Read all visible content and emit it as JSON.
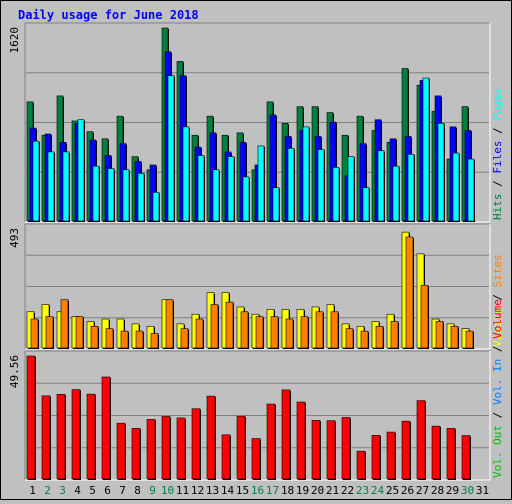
{
  "chart_data": {
    "type": "bar",
    "title": "Daily usage for June 2018",
    "colors": {
      "hits": "#008040",
      "files": "#0000ff",
      "pages": "#00ffff",
      "visits": "#ffff00",
      "sites": "#ff8000",
      "kbin": "#0080ff",
      "kbout": "#00c000",
      "volume": "#ff0000",
      "weekend_label": "#008040",
      "weekday_label": "#000000"
    },
    "categories": [
      "1",
      "2",
      "3",
      "4",
      "5",
      "6",
      "7",
      "8",
      "9",
      "10",
      "11",
      "12",
      "13",
      "14",
      "15",
      "16",
      "17",
      "18",
      "19",
      "20",
      "21",
      "22",
      "23",
      "24",
      "25",
      "26",
      "27",
      "28",
      "29",
      "30",
      "31"
    ],
    "weekend_days": [
      "2",
      "3",
      "9",
      "10",
      "16",
      "17",
      "23",
      "24",
      "30"
    ],
    "panels": [
      {
        "id": "hits-files-pages",
        "max_label": "1620",
        "ylim": [
          0,
          1620
        ],
        "side_labels": [
          {
            "text": "Hits",
            "color": "#008040"
          },
          {
            "text": "Files",
            "color": "#0000ff"
          },
          {
            "text": "Pages",
            "color": "#00ffff"
          }
        ],
        "series": [
          {
            "key": "hits",
            "values": [
              1000,
              720,
              1050,
              840,
              750,
              690,
              880,
              540,
              430,
              1620,
              1340,
              720,
              880,
              720,
              740,
              430,
              1000,
              820,
              960,
              960,
              910,
              720,
              880,
              760,
              660,
              1280,
              1140,
              920,
              520,
              960,
              0
            ]
          },
          {
            "key": "files",
            "values": [
              780,
              730,
              660,
              820,
              680,
              550,
              650,
              500,
              470,
              1420,
              1220,
              620,
              740,
              580,
              660,
              470,
              890,
              710,
              760,
              710,
              830,
              380,
              650,
              850,
              690,
              710,
              1180,
              1050,
              790,
              760,
              0
            ]
          },
          {
            "key": "pages",
            "values": [
              670,
              580,
              580,
              850,
              460,
              440,
              430,
              400,
              240,
              1220,
              790,
              550,
              430,
              540,
              370,
              630,
              280,
              610,
              790,
              600,
              450,
              540,
              280,
              590,
              460,
              560,
              1200,
              820,
              570,
              520,
              0
            ]
          }
        ]
      },
      {
        "id": "visits-sites",
        "max_label": "493",
        "ylim": [
          0,
          493
        ],
        "side_labels": [
          {
            "text": "Visits",
            "color": "#ffff00"
          },
          {
            "text": "Sites",
            "color": "#ff8000"
          }
        ],
        "series": [
          {
            "key": "visits",
            "values": [
              150,
              180,
              150,
              130,
              110,
              120,
              120,
              100,
              90,
              200,
              100,
              140,
              230,
              230,
              170,
              140,
              160,
              160,
              160,
              170,
              180,
              100,
              90,
              110,
              140,
              480,
              390,
              120,
              100,
              80,
              0
            ]
          },
          {
            "key": "sites",
            "values": [
              120,
              130,
              200,
              130,
              90,
              80,
              70,
              70,
              60,
              200,
              80,
              120,
              180,
              190,
              150,
              130,
              130,
              120,
              130,
              150,
              150,
              80,
              70,
              90,
              110,
              460,
              260,
              110,
              90,
              70,
              0
            ]
          }
        ]
      },
      {
        "id": "volume",
        "max_label": "49.56",
        "ylim": [
          0,
          49.56
        ],
        "side_labels": [
          {
            "text": "Vol. Out",
            "color": "#00c000"
          },
          {
            "text": "Vol. In",
            "color": "#0080ff"
          },
          {
            "text": "Volume",
            "color": "#ff0000"
          }
        ],
        "series": [
          {
            "key": "volume",
            "values": [
              49.56,
              33.5,
              34.1,
              36.0,
              34.2,
              41.1,
              22.5,
              20.4,
              24.0,
              25.2,
              24.6,
              28.3,
              33.4,
              17.8,
              25.3,
              16.3,
              30.2,
              35.9,
              31.0,
              23.6,
              23.5,
              24.8,
              11.2,
              17.6,
              18.9,
              23.3,
              31.6,
              21.3,
              20.4,
              17.5,
              0
            ]
          }
        ]
      }
    ]
  }
}
